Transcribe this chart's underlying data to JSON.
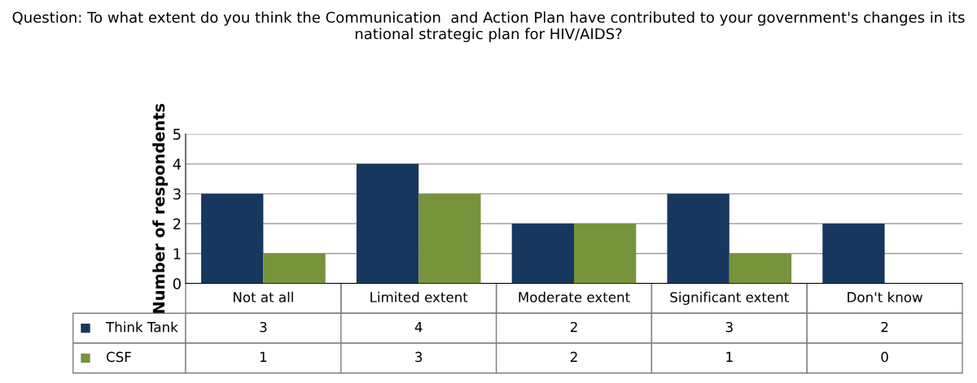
{
  "chart_data": {
    "type": "bar",
    "title": "Question: To what extent do you think the Communication  and Action Plan have contributed to your government's changes in its national strategic plan for HIV/AIDS?",
    "ylabel": "Number of respondents",
    "categories": [
      "Not at all",
      "Limited extent",
      "Moderate extent",
      "Significant extent",
      "Don't know"
    ],
    "series": [
      {
        "name": "Think Tank",
        "color": "#17375e",
        "values": [
          3,
          4,
          2,
          3,
          2
        ]
      },
      {
        "name": "CSF",
        "color": "#77933c",
        "values": [
          1,
          3,
          2,
          1,
          0
        ]
      }
    ],
    "ylim": [
      0,
      5
    ],
    "yticks": [
      0,
      1,
      2,
      3,
      4,
      5
    ],
    "grid": "y",
    "legend": "bottom",
    "data_labels": true
  }
}
